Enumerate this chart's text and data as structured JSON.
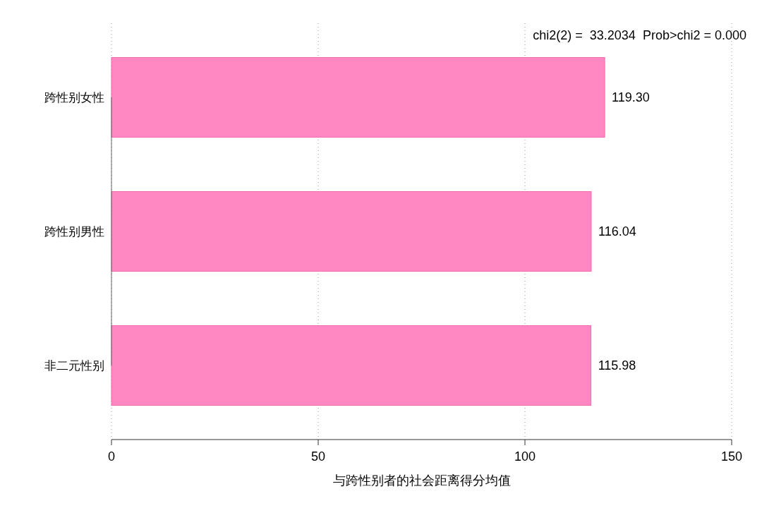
{
  "chart_data": {
    "type": "bar",
    "orientation": "horizontal",
    "xlabel": "与跨性别者的社会距离得分均值",
    "categories": [
      "跨性别女性",
      "跨性别男性",
      "非二元性别"
    ],
    "values": [
      119.3,
      116.04,
      115.98
    ],
    "value_labels": [
      "119.30",
      "116.04",
      "115.98"
    ],
    "color": "#ff88c2",
    "xlim": [
      0,
      150
    ],
    "xticks": [
      0,
      50,
      100,
      150
    ],
    "grid": "x",
    "annotations": [
      "chi2(2) =  33.2034  Prob>chi2 = 0.000"
    ]
  }
}
